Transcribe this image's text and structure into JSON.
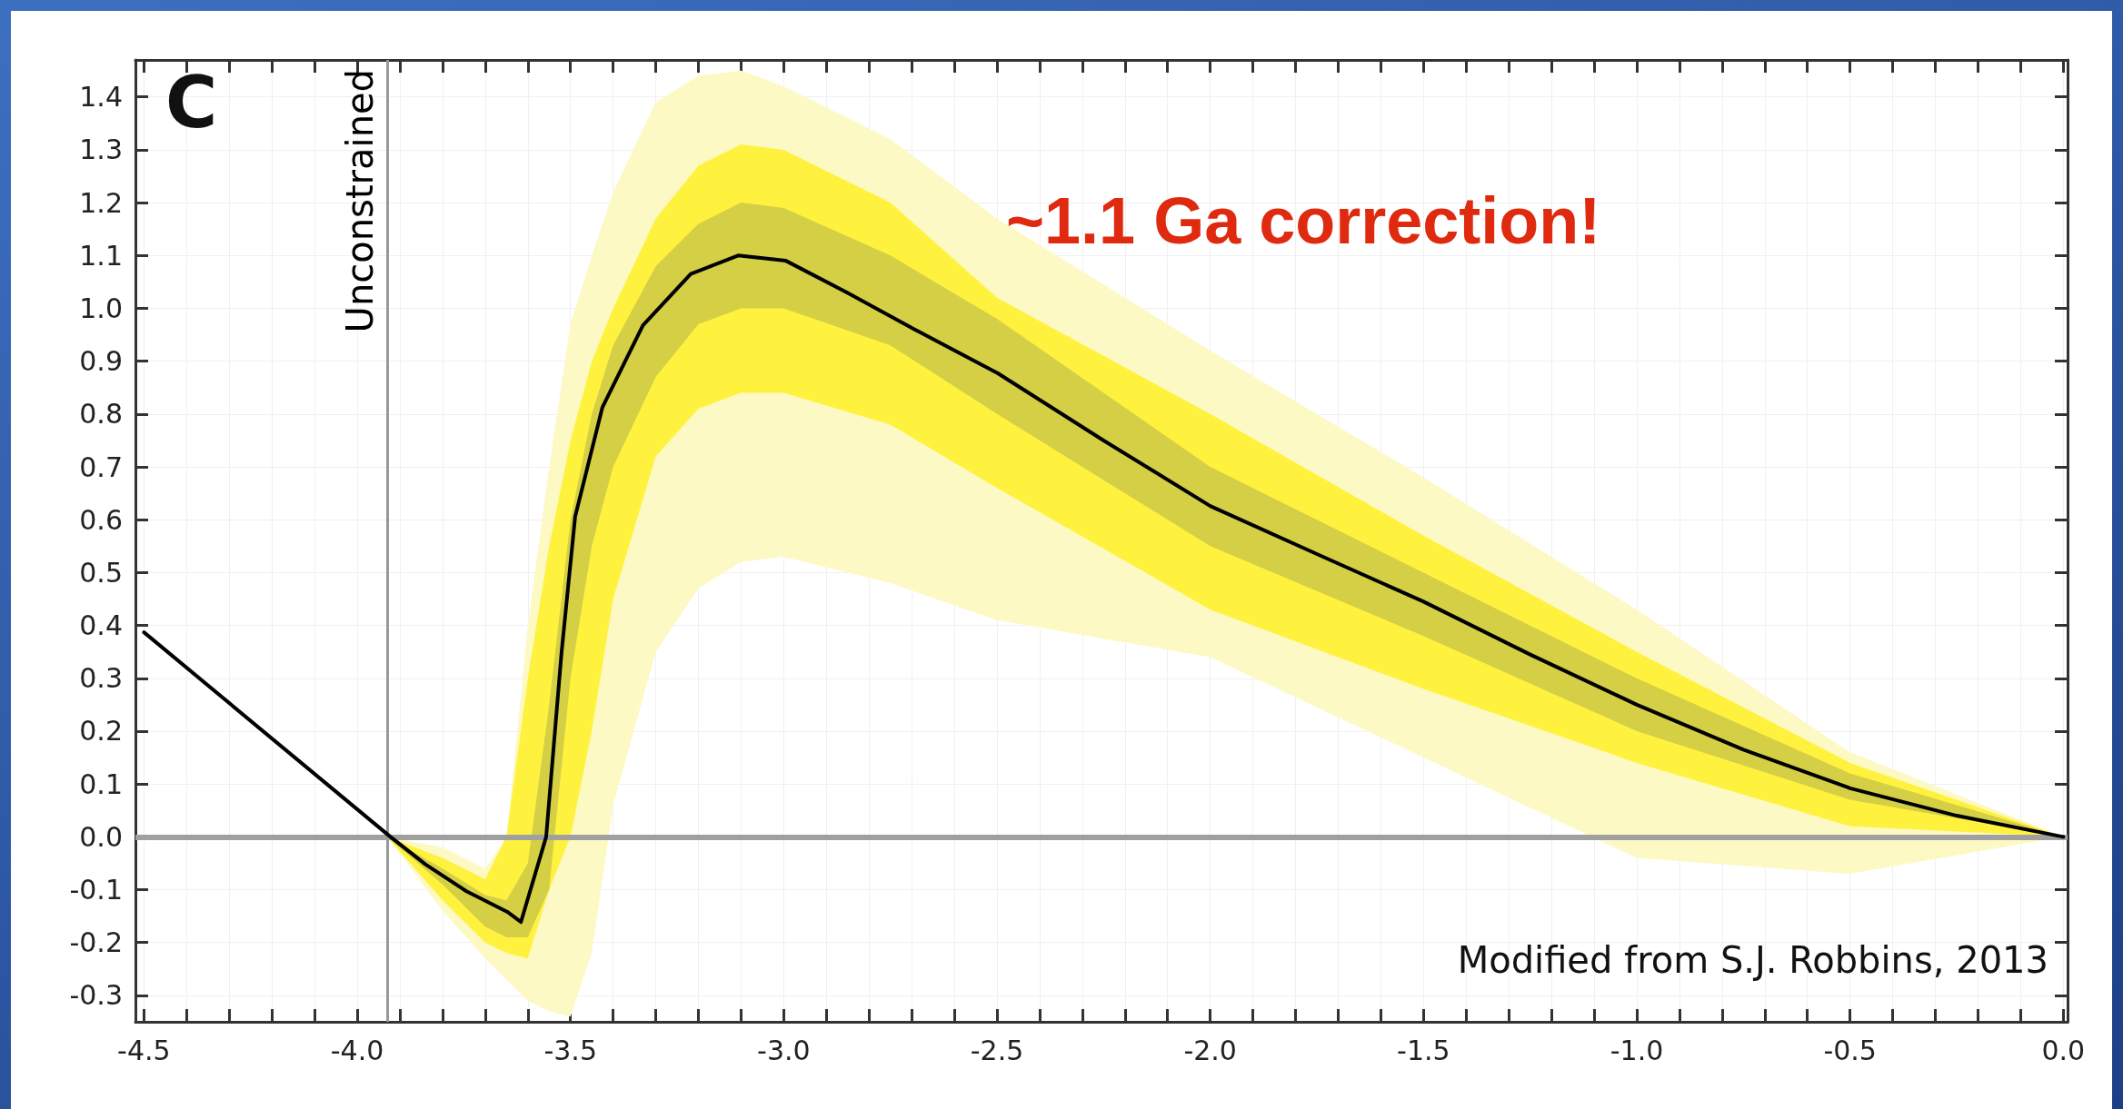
{
  "chart_data": {
    "type": "line",
    "annotations": [
      "C",
      "~1.1 Ga correction!",
      "Modified from S.J. Robbins, 2013"
    ],
    "xlim": [
      -4.52,
      0.01
    ],
    "ylim": [
      -0.35,
      1.47
    ],
    "xticks": [
      {
        "value": -4.5,
        "label": "-4.5"
      },
      {
        "value": -4.4,
        "label": null
      },
      {
        "value": -4.3,
        "label": null
      },
      {
        "value": -4.2,
        "label": null
      },
      {
        "value": -4.1,
        "label": null
      },
      {
        "value": -4,
        "label": "-4.0"
      },
      {
        "value": -3.9,
        "label": null
      },
      {
        "value": -3.8,
        "label": null
      },
      {
        "value": -3.7,
        "label": null
      },
      {
        "value": -3.6,
        "label": null
      },
      {
        "value": -3.5,
        "label": "-3.5"
      },
      {
        "value": -3.4,
        "label": null
      },
      {
        "value": -3.3,
        "label": null
      },
      {
        "value": -3.2,
        "label": null
      },
      {
        "value": -3.1,
        "label": null
      },
      {
        "value": -3,
        "label": "-3.0"
      },
      {
        "value": -2.9,
        "label": null
      },
      {
        "value": -2.8,
        "label": null
      },
      {
        "value": -2.7,
        "label": null
      },
      {
        "value": -2.6,
        "label": null
      },
      {
        "value": -2.5,
        "label": "-2.5"
      },
      {
        "value": -2.4,
        "label": null
      },
      {
        "value": -2.3,
        "label": null
      },
      {
        "value": -2.2,
        "label": null
      },
      {
        "value": -2.1,
        "label": null
      },
      {
        "value": -2,
        "label": "-2.0"
      },
      {
        "value": -1.9,
        "label": null
      },
      {
        "value": -1.8,
        "label": null
      },
      {
        "value": -1.7,
        "label": null
      },
      {
        "value": -1.6,
        "label": null
      },
      {
        "value": -1.5,
        "label": "-1.5"
      },
      {
        "value": -1.4,
        "label": null
      },
      {
        "value": -1.3,
        "label": null
      },
      {
        "value": -1.2,
        "label": null
      },
      {
        "value": -1.1,
        "label": null
      },
      {
        "value": -1,
        "label": "-1.0"
      },
      {
        "value": -0.9,
        "label": null
      },
      {
        "value": -0.8,
        "label": null
      },
      {
        "value": -0.7,
        "label": null
      },
      {
        "value": -0.6,
        "label": null
      },
      {
        "value": -0.5,
        "label": "-0.5"
      },
      {
        "value": -0.4,
        "label": null
      },
      {
        "value": -0.3,
        "label": null
      },
      {
        "value": -0.2,
        "label": null
      },
      {
        "value": -0.1,
        "label": null
      },
      {
        "value": 0,
        "label": "0.0"
      }
    ],
    "yticks": [
      {
        "value": -0.3,
        "label": "-0.3"
      },
      {
        "value": -0.2,
        "label": "-0.2"
      },
      {
        "value": -0.1,
        "label": "-0.1"
      },
      {
        "value": 0,
        "label": "0.0"
      },
      {
        "value": 0.1,
        "label": "0.1"
      },
      {
        "value": 0.2,
        "label": "0.2"
      },
      {
        "value": 0.3,
        "label": "0.3"
      },
      {
        "value": 0.4,
        "label": "0.4"
      },
      {
        "value": 0.5,
        "label": "0.5"
      },
      {
        "value": 0.6,
        "label": "0.6"
      },
      {
        "value": 0.7,
        "label": "0.7"
      },
      {
        "value": 0.8,
        "label": "0.8"
      },
      {
        "value": 0.9,
        "label": "0.9"
      },
      {
        "value": 1,
        "label": "1.0"
      },
      {
        "value": 1.1,
        "label": "1.1"
      },
      {
        "value": 1.2,
        "label": "1.2"
      },
      {
        "value": 1.3,
        "label": "1.3"
      },
      {
        "value": 1.4,
        "label": "1.4"
      }
    ],
    "grid": true,
    "marker": "none",
    "line_style": "solid",
    "ref_lines": [
      {
        "axis": "x",
        "value": -3.93,
        "label": "Unconstrained",
        "color": "#999999"
      },
      {
        "axis": "y",
        "value": 0,
        "label": null,
        "color": "#a0a0a0"
      }
    ],
    "series": [
      {
        "type": "area",
        "color": "#fdf9c4",
        "values": [
          null,
          null,
          null,
          null,
          null,
          null,
          null,
          null,
          null,
          null,
          null,
          null,
          null,
          null,
          null,
          null,
          null,
          null,
          null,
          null
        ],
        "x": [
          -3.93,
          -3.8,
          -3.7,
          -3.65,
          -3.6,
          -3.55,
          -3.5,
          -3.45,
          -3.4,
          -3.3,
          -3.2,
          -3.1,
          -3.0,
          -2.75,
          -2.5,
          -2.0,
          -1.5,
          -1.0,
          -0.5,
          0
        ],
        "lower": [
          0,
          -0.14,
          -0.23,
          -0.27,
          -0.31,
          -0.33,
          -0.34,
          -0.22,
          0.06,
          0.35,
          0.47,
          0.52,
          0.53,
          0.48,
          0.41,
          0.34,
          0.15,
          -0.04,
          -0.07,
          0
        ],
        "upper": [
          0,
          -0.02,
          -0.06,
          0,
          0.4,
          0.7,
          0.97,
          1.1,
          1.22,
          1.39,
          1.44,
          1.45,
          1.42,
          1.32,
          1.17,
          0.92,
          0.68,
          0.43,
          0.16,
          0
        ]
      },
      {
        "type": "area",
        "color": "#fff23f",
        "values": [
          null,
          null,
          null,
          null,
          null,
          null,
          null,
          null,
          null,
          null,
          null,
          null,
          null,
          null,
          null,
          null,
          null,
          null,
          null,
          null
        ],
        "x": [
          -3.93,
          -3.8,
          -3.7,
          -3.65,
          -3.6,
          -3.55,
          -3.5,
          -3.45,
          -3.4,
          -3.3,
          -3.2,
          -3.1,
          -3.0,
          -2.75,
          -2.5,
          -2.0,
          -1.5,
          -1.0,
          -0.5,
          0
        ],
        "lower": [
          0,
          -0.12,
          -0.2,
          -0.22,
          -0.23,
          -0.1,
          0,
          0.2,
          0.45,
          0.72,
          0.81,
          0.84,
          0.84,
          0.78,
          0.66,
          0.43,
          0.28,
          0.14,
          0.02,
          0
        ],
        "upper": [
          0,
          -0.04,
          -0.08,
          0,
          0.3,
          0.55,
          0.75,
          0.9,
          1.0,
          1.17,
          1.27,
          1.31,
          1.3,
          1.2,
          1.02,
          0.8,
          0.57,
          0.35,
          0.14,
          0
        ]
      },
      {
        "type": "area",
        "color": "#d5cf45",
        "values": [
          null,
          null,
          null,
          null,
          null,
          null,
          null,
          null,
          null,
          null,
          null,
          null,
          null,
          null,
          null,
          null,
          null,
          null,
          null,
          null
        ],
        "x": [
          -3.93,
          -3.8,
          -3.7,
          -3.65,
          -3.6,
          -3.55,
          -3.5,
          -3.45,
          -3.4,
          -3.3,
          -3.2,
          -3.1,
          -3.0,
          -2.75,
          -2.5,
          -2.0,
          -1.5,
          -1.0,
          -0.5,
          0
        ],
        "lower": [
          0,
          -0.09,
          -0.17,
          -0.19,
          -0.19,
          -0.1,
          0.3,
          0.55,
          0.7,
          0.87,
          0.97,
          1.0,
          1.0,
          0.93,
          0.8,
          0.55,
          0.38,
          0.2,
          0.07,
          0
        ],
        "upper": [
          0,
          -0.06,
          -0.11,
          -0.12,
          -0.05,
          0.25,
          0.6,
          0.8,
          0.93,
          1.08,
          1.16,
          1.2,
          1.19,
          1.1,
          0.98,
          0.7,
          0.5,
          0.3,
          0.12,
          0
        ]
      },
      {
        "color": "#000000",
        "x": [
          -4.5,
          -3.922,
          -3.84,
          -3.744,
          -3.648,
          -3.616,
          -3.557,
          -3.521,
          -3.489,
          -3.425,
          -3.33,
          -3.218,
          -3.107,
          -2.995,
          -2.852,
          -2.693,
          -2.498,
          -2.25,
          -2.0,
          -1.75,
          -1.5,
          -1.25,
          -1.0,
          -0.75,
          -0.5,
          -0.25,
          0
        ],
        "values": [
          0.387,
          0,
          -0.052,
          -0.103,
          -0.142,
          -0.161,
          0,
          0.348,
          0.606,
          0.813,
          0.968,
          1.065,
          1.1,
          1.09,
          1.03,
          0.96,
          0.877,
          0.75,
          0.626,
          0.535,
          0.445,
          0.345,
          0.25,
          0.165,
          0.092,
          0.04,
          0
        ]
      }
    ]
  }
}
